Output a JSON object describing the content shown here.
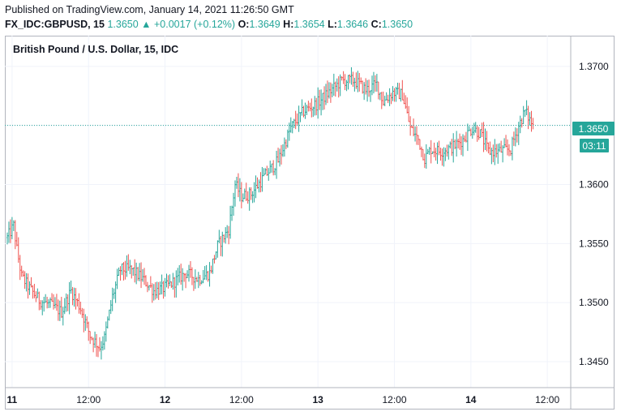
{
  "header": {
    "published": "Published on TradingView.com, January 14, 2021 11:26:50 GMT",
    "symbol": "FX_IDC:GBPUSD, 15",
    "last": "1.3650",
    "change": "▲ +0.0017 (+0.12%)",
    "o_label": "O:",
    "o_value": "1.3649",
    "h_label": "H:",
    "h_value": "1.3654",
    "l_label": "L:",
    "l_value": "1.3646",
    "c_label": "C:",
    "c_value": "1.3650"
  },
  "colors": {
    "up": "#26a69a",
    "down": "#ef5350",
    "price_tag": "#26a69a",
    "grid": "#f0f3fa"
  },
  "chart_data": {
    "type": "ohlc",
    "title": "British Pound / U.S. Dollar, 15, IDC",
    "xlabel": "",
    "ylabel": "",
    "ylim": [
      1.3428,
      1.3726
    ],
    "grid": true,
    "current_price": "1.3650",
    "countdown": "03:11",
    "y_ticks": [
      "1.3700",
      "1.3650",
      "1.3600",
      "1.3550",
      "1.3500",
      "1.3450"
    ],
    "x_ticks": [
      {
        "label": "11",
        "bold": true,
        "bar": 3
      },
      {
        "label": "12:00",
        "bold": false,
        "bar": 51
      },
      {
        "label": "12",
        "bold": true,
        "bar": 99
      },
      {
        "label": "12:00",
        "bold": false,
        "bar": 147
      },
      {
        "label": "13",
        "bold": true,
        "bar": 195
      },
      {
        "label": "12:00",
        "bold": false,
        "bar": 243
      },
      {
        "label": "14",
        "bold": true,
        "bar": 291
      },
      {
        "label": "12:00",
        "bold": false,
        "bar": 339
      }
    ],
    "anchors": [
      [
        0,
        1.3555
      ],
      [
        4,
        1.3565
      ],
      [
        6,
        1.3545
      ],
      [
        9,
        1.3522
      ],
      [
        14,
        1.3512
      ],
      [
        20,
        1.3502
      ],
      [
        27,
        1.3498
      ],
      [
        34,
        1.3492
      ],
      [
        40,
        1.351
      ],
      [
        46,
        1.3495
      ],
      [
        52,
        1.3472
      ],
      [
        58,
        1.3462
      ],
      [
        61,
        1.347
      ],
      [
        66,
        1.3505
      ],
      [
        71,
        1.3528
      ],
      [
        78,
        1.3528
      ],
      [
        85,
        1.352
      ],
      [
        92,
        1.351
      ],
      [
        98,
        1.3512
      ],
      [
        105,
        1.3518
      ],
      [
        112,
        1.3525
      ],
      [
        120,
        1.352
      ],
      [
        127,
        1.3525
      ],
      [
        132,
        1.3548
      ],
      [
        139,
        1.3562
      ],
      [
        143,
        1.36
      ],
      [
        147,
        1.359
      ],
      [
        153,
        1.3592
      ],
      [
        162,
        1.3608
      ],
      [
        170,
        1.362
      ],
      [
        178,
        1.3648
      ],
      [
        186,
        1.3662
      ],
      [
        194,
        1.3668
      ],
      [
        202,
        1.3678
      ],
      [
        210,
        1.3688
      ],
      [
        218,
        1.3688
      ],
      [
        225,
        1.368
      ],
      [
        232,
        1.3685
      ],
      [
        236,
        1.367
      ],
      [
        242,
        1.3678
      ],
      [
        248,
        1.3676
      ],
      [
        253,
        1.3648
      ],
      [
        258,
        1.3638
      ],
      [
        262,
        1.3622
      ],
      [
        266,
        1.363
      ],
      [
        272,
        1.3628
      ],
      [
        280,
        1.3632
      ],
      [
        286,
        1.3638
      ],
      [
        292,
        1.3648
      ],
      [
        297,
        1.3643
      ],
      [
        302,
        1.3628
      ],
      [
        308,
        1.3628
      ],
      [
        316,
        1.363
      ],
      [
        321,
        1.365
      ],
      [
        325,
        1.3662
      ],
      [
        330,
        1.365
      ]
    ]
  }
}
